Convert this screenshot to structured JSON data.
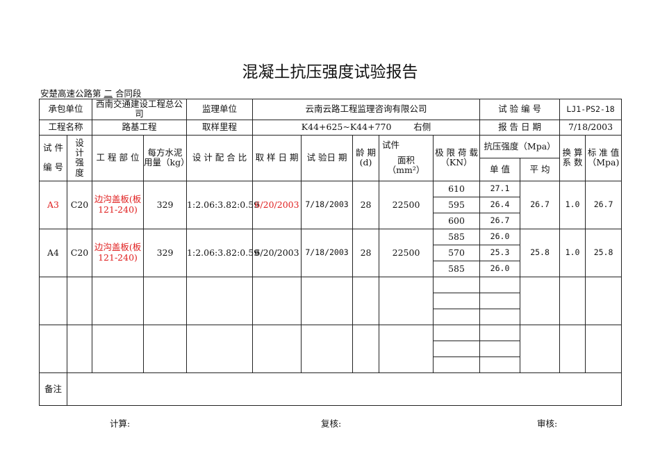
{
  "title": "混凝土抗压强度试验报告",
  "subtitle": {
    "prefix": "安楚高速公路第",
    "section": "二",
    "suffix": "合同段"
  },
  "info": {
    "contractor_label": "承包单位",
    "contractor": "西南交通建设工程总公司",
    "supervisor_label": "监理单位",
    "supervisor": "云南云路工程监理咨询有限公司",
    "test_no_label": "试 验 编 号",
    "test_no": "LJ1-PS2-18",
    "project_label": "工程名称",
    "project": "路基工程",
    "mileage_label": "取样里程",
    "mileage": "K44+625~K44+770",
    "side": "右侧",
    "report_date_label": "报 告 日 期",
    "report_date": "7/18/2003"
  },
  "headers": {
    "specimen_no_a": "试 件",
    "specimen_no_b": "编 号",
    "design_a": "设\n计",
    "design_b": "强\n度",
    "part": "工 程 部 位",
    "cement": "每方水泥用量（kg）",
    "mix": "设 计 配 合 比",
    "sample_date": "取 样 日 期",
    "test_date": "试 验日 期",
    "age": "龄 期(d)",
    "area_a": "试件",
    "area_b": "面积",
    "area_c": "（mm²）",
    "load": "极 限 荷 载（KN）",
    "strength": "抗压强度（Mpa）",
    "single": "单 值",
    "avg": "平 均",
    "factor": "换 算 系 数",
    "std": "标 准 值（Mpa)"
  },
  "rows": [
    {
      "no": "A3",
      "grade": "C20",
      "part": "边沟盖板(板121-240)",
      "cement": "329",
      "mix": "1:2.06:3.82:0.59",
      "sample_date": "6/20/2003",
      "test_date": "7/18/2003",
      "age": "28",
      "area": "22500",
      "loads": [
        "610",
        "595",
        "600"
      ],
      "singles": [
        "27.1",
        "26.4",
        "26.7"
      ],
      "avg": "26.7",
      "factor": "1.0",
      "std": "26.7",
      "highlight": true
    },
    {
      "no": "A4",
      "grade": "C20",
      "part": "边沟盖板(板121-240)",
      "cement": "329",
      "mix": "1:2.06:3.82:0.59",
      "sample_date": "6/20/2003",
      "test_date": "7/18/2003",
      "age": "28",
      "area": "22500",
      "loads": [
        "585",
        "570",
        "585"
      ],
      "singles": [
        "26.0",
        "25.3",
        "26.0"
      ],
      "avg": "25.8",
      "factor": "1.0",
      "std": "25.8",
      "highlight": false
    }
  ],
  "remarks_label": "备注",
  "footer": {
    "calc": "计算:",
    "review": "复核:",
    "audit": "审核:"
  }
}
